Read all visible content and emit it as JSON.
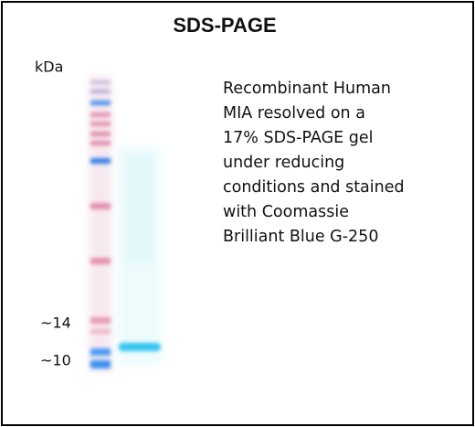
{
  "title": "SDS-PAGE",
  "gel": {
    "unit": "kDa",
    "markers": [
      "~14",
      "~10"
    ]
  },
  "description": {
    "lines": [
      "Recombinant Human",
      "MIA resolved on a",
      "17% SDS-PAGE gel",
      "under reducing",
      "conditions and stained",
      "with Coomassie",
      "Brilliant Blue G-250"
    ]
  }
}
